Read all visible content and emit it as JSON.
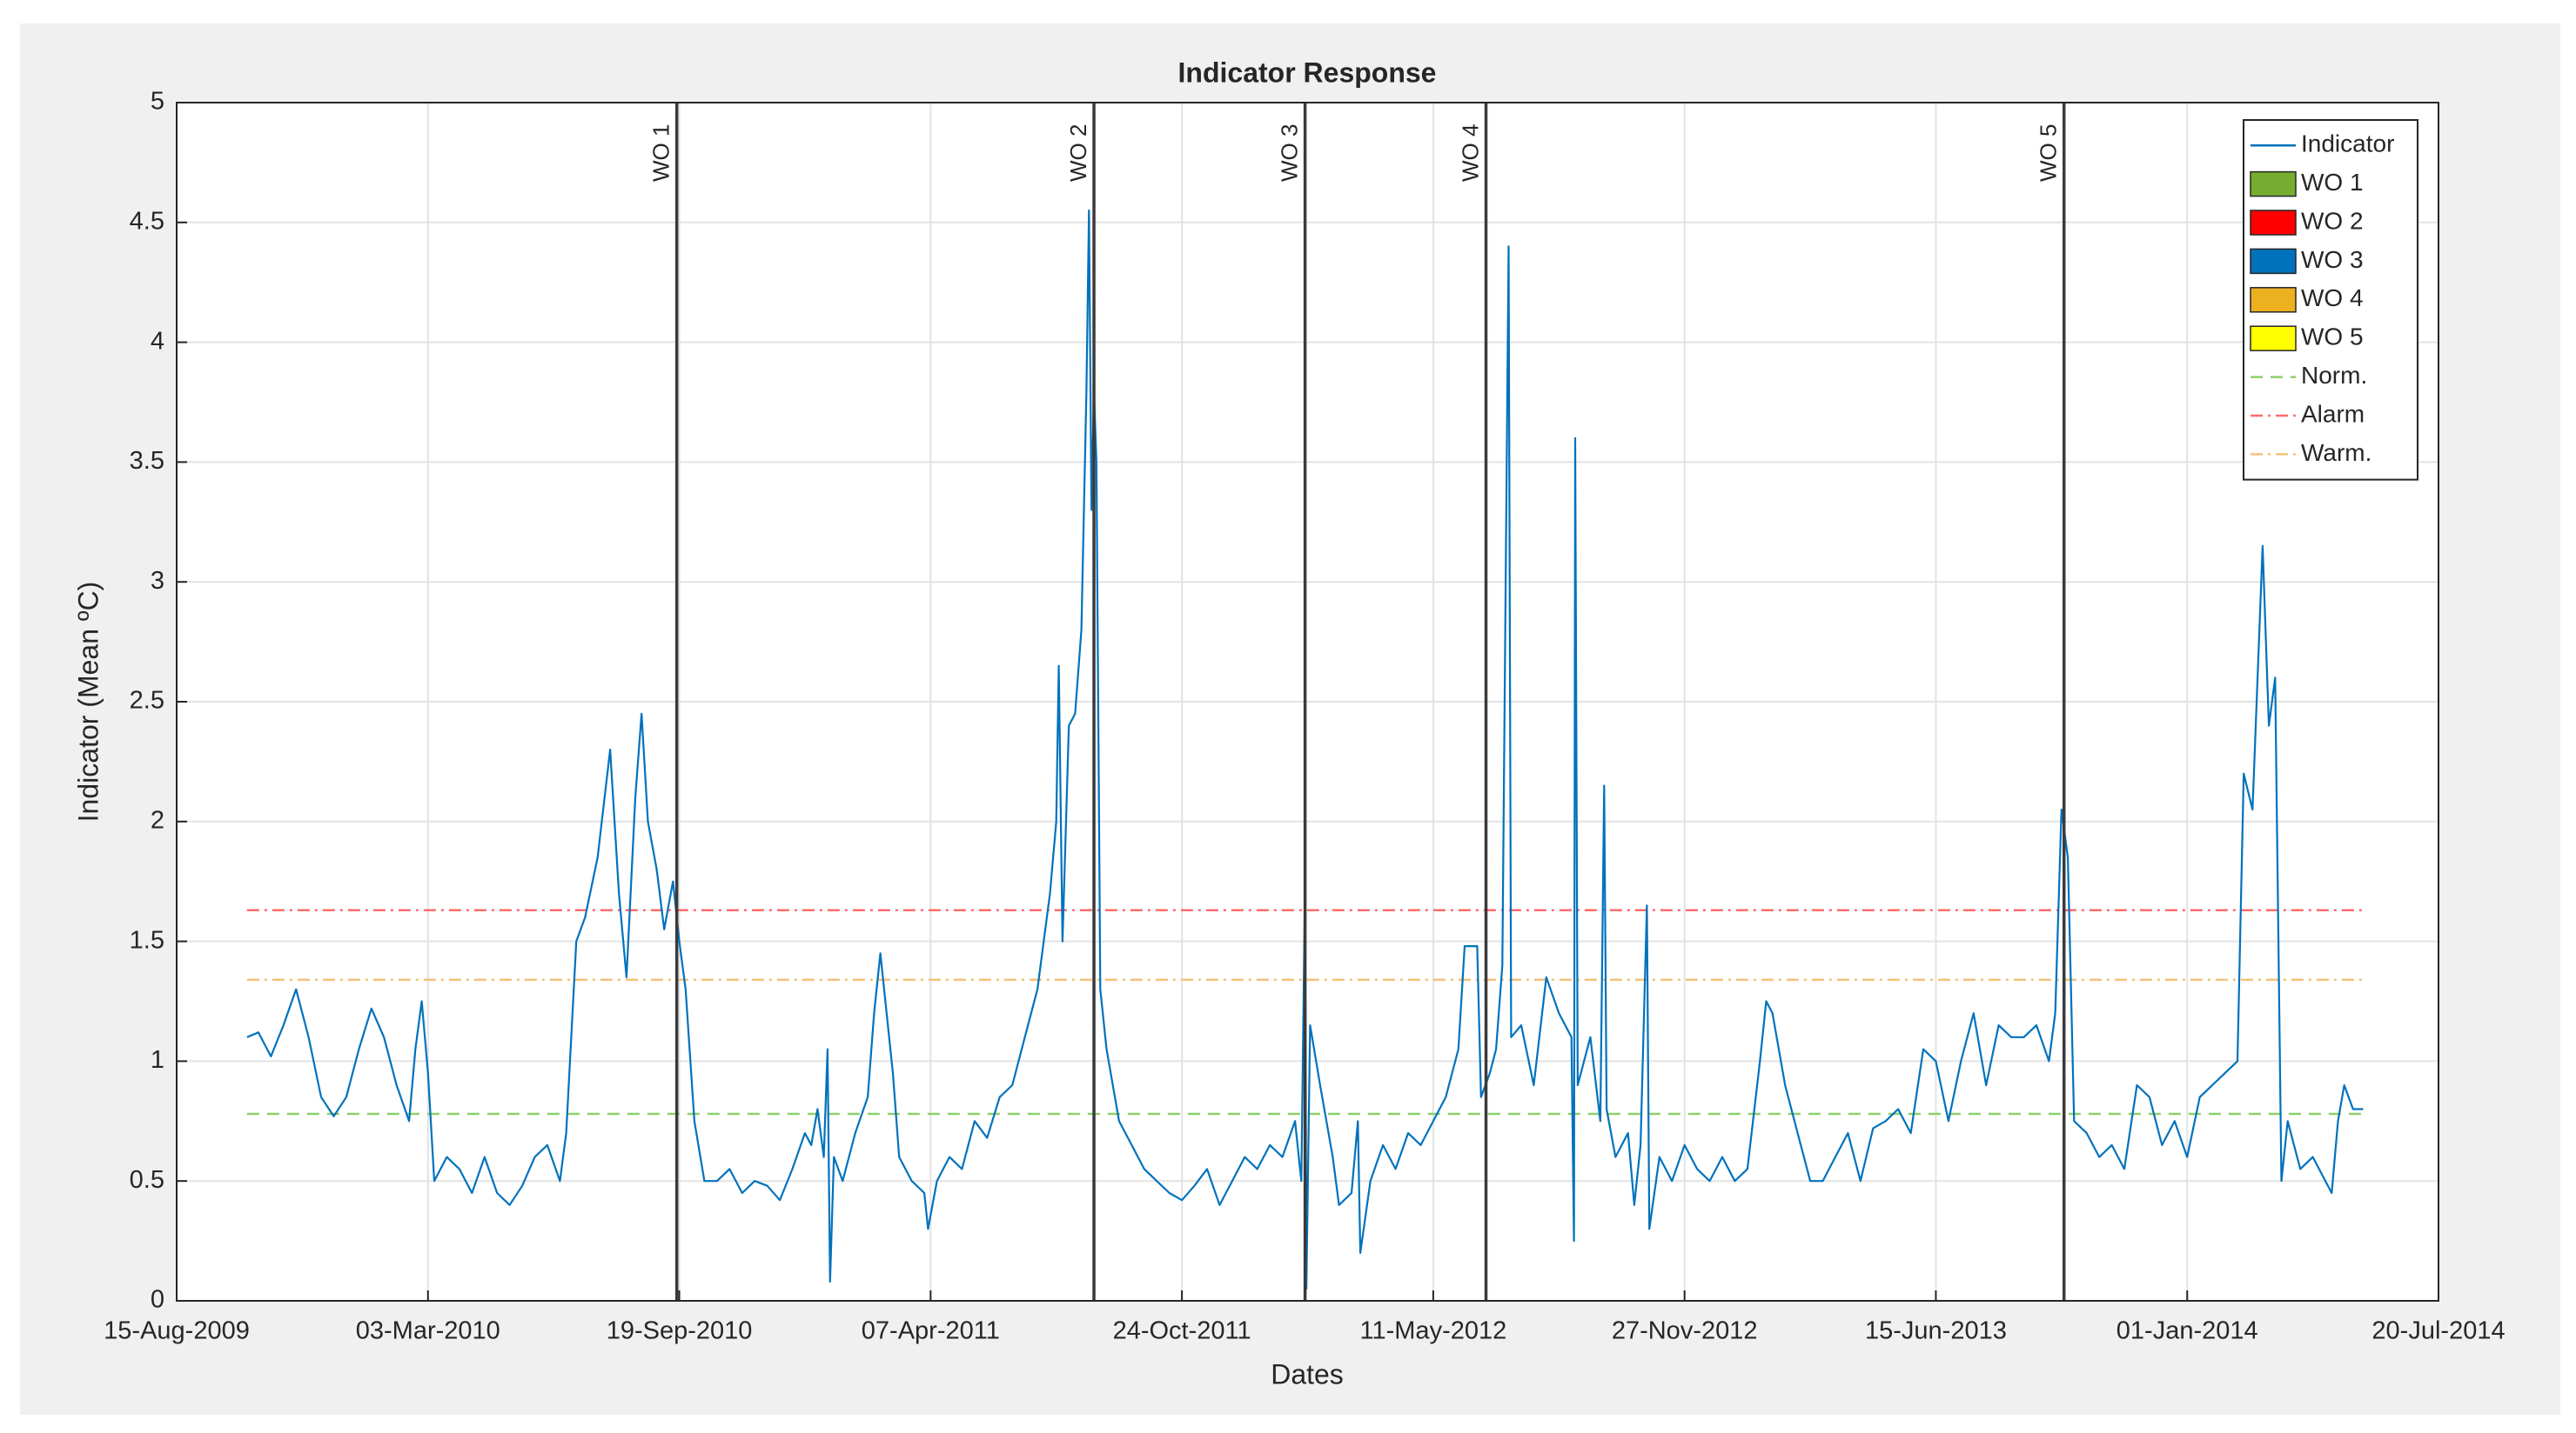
{
  "chart_data": {
    "type": "line",
    "title": "Indicator Response",
    "x_label": "Dates",
    "y_label": "Indicator (Mean ºC)",
    "xlim": [
      "2009-08-15",
      "2014-07-20"
    ],
    "xticks": [
      {
        "value": "2009-08-15",
        "label": "15-Aug-2009"
      },
      {
        "value": "2010-03-03",
        "label": "03-Mar-2010"
      },
      {
        "value": "2010-09-19",
        "label": "19-Sep-2010"
      },
      {
        "value": "2011-04-07",
        "label": "07-Apr-2011"
      },
      {
        "value": "2011-10-24",
        "label": "24-Oct-2011"
      },
      {
        "value": "2012-05-11",
        "label": "11-May-2012"
      },
      {
        "value": "2012-11-27",
        "label": "27-Nov-2012"
      },
      {
        "value": "2013-06-15",
        "label": "15-Jun-2013"
      },
      {
        "value": "2014-01-01",
        "label": "01-Jan-2014"
      },
      {
        "value": "2014-07-20",
        "label": "20-Jul-2014"
      }
    ],
    "ylim": [
      0,
      5
    ],
    "yticks": [
      0,
      0.5,
      1,
      1.5,
      2,
      2.5,
      3,
      3.5,
      4,
      4.5,
      5
    ],
    "grid": true,
    "legend": "upper right",
    "x": [
      "2009-10-10",
      "2009-10-19",
      "2009-10-29",
      "2009-11-08",
      "2009-11-18",
      "2009-11-28",
      "2009-12-08",
      "2009-12-18",
      "2009-12-28",
      "2010-01-07",
      "2010-01-17",
      "2010-01-27",
      "2010-02-06",
      "2010-02-16",
      "2010-02-21",
      "2010-02-26",
      "2010-03-03",
      "2010-03-08",
      "2010-03-18",
      "2010-03-28",
      "2010-04-07",
      "2010-04-17",
      "2010-04-27",
      "2010-05-07",
      "2010-05-17",
      "2010-05-27",
      "2010-06-06",
      "2010-06-16",
      "2010-06-21",
      "2010-06-29",
      "2010-07-06",
      "2010-07-16",
      "2010-07-26",
      "2010-08-02",
      "2010-08-08",
      "2010-08-15",
      "2010-08-20",
      "2010-08-25",
      "2010-09-01",
      "2010-09-07",
      "2010-09-14",
      "2010-09-19",
      "2010-09-24",
      "2010-10-01",
      "2010-10-09",
      "2010-10-19",
      "2010-10-29",
      "2010-11-08",
      "2010-11-18",
      "2010-11-28",
      "2010-12-08",
      "2010-12-18",
      "2010-12-28",
      "2011-01-02",
      "2011-01-07",
      "2011-01-12",
      "2011-01-15",
      "2011-01-17",
      "2011-01-20",
      "2011-01-27",
      "2011-02-06",
      "2011-02-16",
      "2011-02-21",
      "2011-02-26",
      "2011-03-03",
      "2011-03-08",
      "2011-03-13",
      "2011-03-23",
      "2011-04-02",
      "2011-04-05",
      "2011-04-12",
      "2011-04-22",
      "2011-05-02",
      "2011-05-12",
      "2011-05-22",
      "2011-06-01",
      "2011-06-11",
      "2011-06-21",
      "2011-07-01",
      "2011-07-11",
      "2011-07-16",
      "2011-07-18",
      "2011-07-21",
      "2011-07-26",
      "2011-07-31",
      "2011-08-05",
      "2011-08-09",
      "2011-08-11",
      "2011-08-13",
      "2011-08-15",
      "2011-08-17",
      "2011-08-20",
      "2011-08-25",
      "2011-09-04",
      "2011-09-14",
      "2011-09-24",
      "2011-10-04",
      "2011-10-14",
      "2011-10-24",
      "2011-11-03",
      "2011-11-13",
      "2011-11-23",
      "2011-12-03",
      "2011-12-13",
      "2011-12-23",
      "2012-01-02",
      "2012-01-12",
      "2012-01-22",
      "2012-01-27",
      "2012-01-30",
      "2012-01-31",
      "2012-02-03",
      "2012-02-11",
      "2012-02-21",
      "2012-02-26",
      "2012-03-07",
      "2012-03-12",
      "2012-03-14",
      "2012-03-22",
      "2012-04-01",
      "2012-04-11",
      "2012-04-21",
      "2012-05-01",
      "2012-05-11",
      "2012-05-21",
      "2012-05-31",
      "2012-06-05",
      "2012-06-15",
      "2012-06-18",
      "2012-06-25",
      "2012-06-30",
      "2012-07-05",
      "2012-07-08",
      "2012-07-10",
      "2012-07-12",
      "2012-07-20",
      "2012-07-30",
      "2012-08-09",
      "2012-08-19",
      "2012-08-29",
      "2012-08-31",
      "2012-09-01",
      "2012-09-03",
      "2012-09-13",
      "2012-09-21",
      "2012-09-24",
      "2012-09-26",
      "2012-10-03",
      "2012-10-13",
      "2012-10-18",
      "2012-10-23",
      "2012-10-28",
      "2012-10-30",
      "2012-11-07",
      "2012-11-17",
      "2012-11-27",
      "2012-12-07",
      "2012-12-17",
      "2012-12-27",
      "2013-01-06",
      "2013-01-16",
      "2013-01-26",
      "2013-01-31",
      "2013-02-05",
      "2013-02-15",
      "2013-02-25",
      "2013-03-07",
      "2013-03-17",
      "2013-03-27",
      "2013-04-06",
      "2013-04-16",
      "2013-04-26",
      "2013-05-06",
      "2013-05-16",
      "2013-05-26",
      "2013-06-05",
      "2013-06-15",
      "2013-06-25",
      "2013-07-05",
      "2013-07-15",
      "2013-07-25",
      "2013-08-04",
      "2013-08-14",
      "2013-08-24",
      "2013-09-03",
      "2013-09-13",
      "2013-09-18",
      "2013-09-23",
      "2013-09-28",
      "2013-10-03",
      "2013-10-13",
      "2013-10-23",
      "2013-11-02",
      "2013-11-12",
      "2013-11-22",
      "2013-12-02",
      "2013-12-12",
      "2013-12-22",
      "2014-01-01",
      "2014-01-11",
      "2014-01-21",
      "2014-01-31",
      "2014-02-10",
      "2014-02-15",
      "2014-02-22",
      "2014-03-02",
      "2014-03-07",
      "2014-03-12",
      "2014-03-17",
      "2014-03-22",
      "2014-04-01",
      "2014-04-11",
      "2014-04-21",
      "2014-04-26",
      "2014-05-01",
      "2014-05-06",
      "2014-05-13",
      "2014-05-21"
    ],
    "series": [
      {
        "name": "Indicator",
        "color": "#0072BD",
        "values": [
          1.1,
          1.12,
          1.02,
          1.15,
          1.3,
          1.1,
          0.85,
          0.77,
          0.85,
          1.05,
          1.22,
          1.1,
          0.9,
          0.75,
          1.05,
          1.25,
          0.95,
          0.5,
          0.6,
          0.55,
          0.45,
          0.6,
          0.45,
          0.4,
          0.48,
          0.6,
          0.65,
          0.5,
          0.7,
          1.5,
          1.6,
          1.85,
          2.3,
          1.7,
          1.35,
          2.1,
          2.45,
          2.0,
          1.8,
          1.55,
          1.75,
          1.5,
          1.3,
          0.75,
          0.5,
          0.5,
          0.55,
          0.45,
          0.5,
          0.48,
          0.42,
          0.55,
          0.7,
          0.65,
          0.8,
          0.6,
          1.05,
          0.08,
          0.6,
          0.5,
          0.7,
          0.85,
          1.2,
          1.45,
          1.2,
          0.95,
          0.6,
          0.5,
          0.45,
          0.3,
          0.5,
          0.6,
          0.55,
          0.75,
          0.68,
          0.85,
          0.9,
          1.1,
          1.3,
          1.7,
          2.0,
          2.65,
          1.5,
          2.4,
          2.45,
          2.8,
          3.8,
          4.55,
          3.3,
          3.8,
          3.5,
          1.3,
          1.05,
          0.75,
          0.65,
          0.55,
          0.5,
          0.45,
          0.42,
          0.48,
          0.55,
          0.4,
          0.5,
          0.6,
          0.55,
          0.65,
          0.6,
          0.75,
          0.5,
          1.75,
          0.05,
          1.15,
          0.9,
          0.6,
          0.4,
          0.45,
          0.75,
          0.2,
          0.5,
          0.65,
          0.55,
          0.7,
          0.65,
          0.75,
          0.85,
          1.05,
          1.48,
          1.48,
          0.85,
          0.95,
          1.05,
          1.4,
          3.2,
          4.4,
          1.1,
          1.15,
          0.9,
          1.35,
          1.2,
          1.1,
          0.25,
          3.6,
          0.9,
          1.1,
          0.75,
          2.15,
          0.8,
          0.6,
          0.7,
          0.4,
          0.65,
          1.65,
          0.3,
          0.6,
          0.5,
          0.65,
          0.55,
          0.5,
          0.6,
          0.5,
          0.55,
          1.0,
          1.25,
          1.2,
          0.9,
          0.7,
          0.5,
          0.5,
          0.6,
          0.7,
          0.5,
          0.72,
          0.75,
          0.8,
          0.7,
          1.05,
          1.0,
          0.75,
          1.0,
          1.2,
          0.9,
          1.15,
          1.1,
          1.1,
          1.15,
          1.0,
          1.2,
          2.05,
          1.85,
          0.75,
          0.7,
          0.6,
          0.65,
          0.55,
          0.9,
          0.85,
          0.65,
          0.75,
          0.6,
          0.85,
          0.9,
          0.95,
          1.0,
          2.2,
          2.05,
          3.15,
          2.4,
          2.6,
          0.5,
          0.75,
          0.55,
          0.6,
          0.5,
          0.45,
          0.75,
          0.9,
          0.8,
          0.8
        ]
      }
    ],
    "work_orders": [
      {
        "name": "WO 1",
        "date": "2010-09-17",
        "color": "#77AC30"
      },
      {
        "name": "WO 2",
        "date": "2011-08-15",
        "color": "#FF0000"
      },
      {
        "name": "WO 3",
        "date": "2012-01-30",
        "color": "#0072BD"
      },
      {
        "name": "WO 4",
        "date": "2012-06-22",
        "color": "#EDB120"
      },
      {
        "name": "WO 5",
        "date": "2013-09-25",
        "color": "#FFFF00"
      }
    ],
    "thresholds": [
      {
        "name": "Norm.",
        "value": 0.78,
        "color": "#8fcf6a",
        "dash": "dash"
      },
      {
        "name": "Alarm",
        "value": 1.63,
        "color": "#ff6b6b",
        "dash": "dashdot"
      },
      {
        "name": "Warm.",
        "value": 1.34,
        "color": "#f3c27a",
        "dash": "dashdot"
      }
    ]
  }
}
